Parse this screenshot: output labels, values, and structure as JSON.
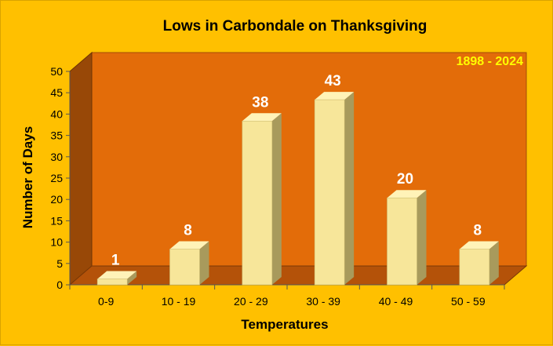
{
  "chart_data": {
    "type": "bar",
    "title": "Lows in Carbondale on Thanksgiving",
    "subtitle": "1898 - 2024",
    "xlabel": "Temperatures",
    "ylabel": "Number of Days",
    "categories": [
      "0-9",
      "10 - 19",
      "20 - 29",
      "30 - 39",
      "40 - 49",
      "50 - 59"
    ],
    "values": [
      1,
      8,
      38,
      43,
      20,
      8
    ],
    "ylim": [
      0,
      50
    ],
    "yticks": [
      0,
      5,
      10,
      15,
      20,
      25,
      30,
      35,
      40,
      45,
      50
    ],
    "grid": false,
    "legend": "none",
    "colors": {
      "background": "#ffc000",
      "back_wall": "#e36c09",
      "side_wall": "#984807",
      "floor": "#b45209",
      "bar_front": "#f7e69a",
      "bar_side": "#a89a5c",
      "bar_top": "#fff3b8",
      "data_label": "#ffffff",
      "period_label": "#ffff00"
    }
  }
}
